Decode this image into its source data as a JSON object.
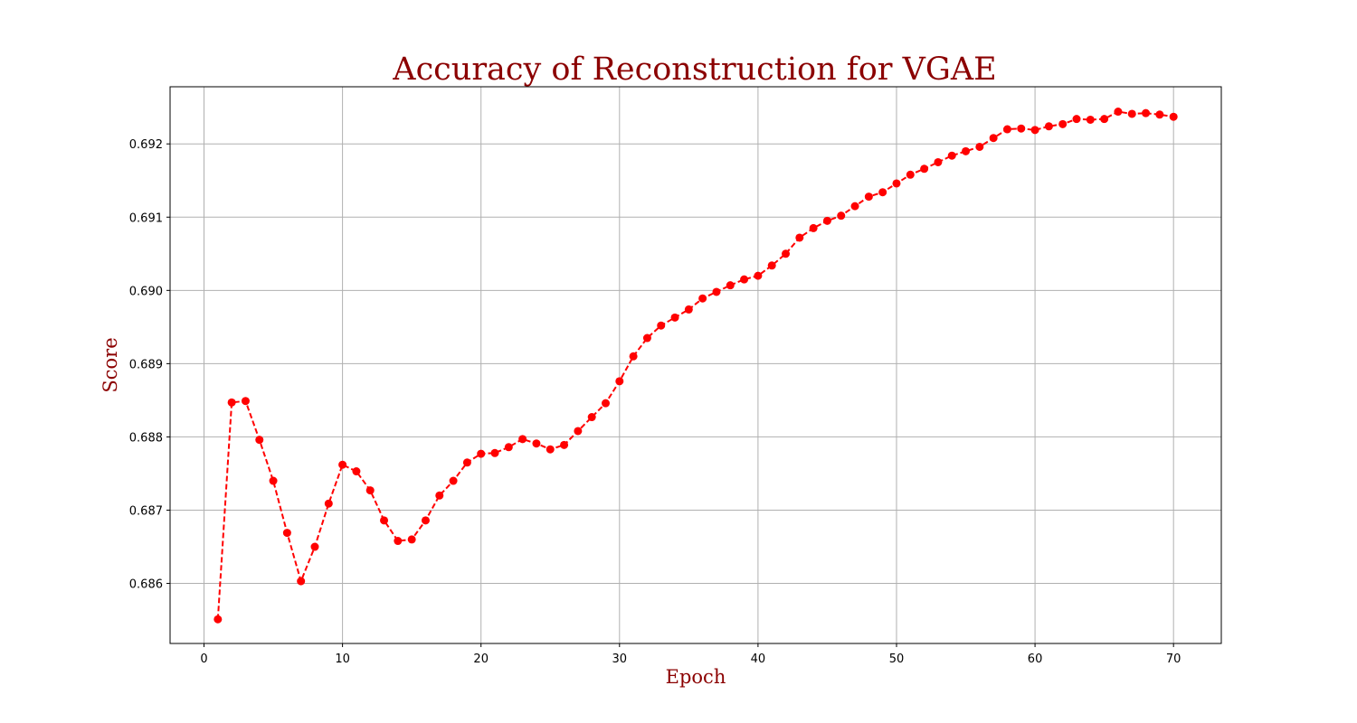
{
  "colors": {
    "title": "#8b0000",
    "axis_label": "#8b0000",
    "series": "#ff0000",
    "grid": "#b0b0b0"
  },
  "chart_data": {
    "type": "line",
    "title": "Accuracy of Reconstruction for VGAE",
    "xlabel": "Epoch",
    "ylabel": "Score",
    "xlim": [
      -2.45,
      73.45
    ],
    "ylim": [
      0.68518,
      0.69278
    ],
    "xticks": [
      0,
      10,
      20,
      30,
      40,
      50,
      60,
      70
    ],
    "xtick_labels": [
      "0",
      "10",
      "20",
      "30",
      "40",
      "50",
      "60",
      "70"
    ],
    "yticks": [
      0.686,
      0.687,
      0.688,
      0.689,
      0.69,
      0.691,
      0.692
    ],
    "ytick_labels": [
      "0.686",
      "0.687",
      "0.688",
      "0.689",
      "0.690",
      "0.691",
      "0.692"
    ],
    "grid": true,
    "line_style": "dashed",
    "marker": "circle",
    "x": [
      1,
      2,
      3,
      4,
      5,
      6,
      7,
      8,
      9,
      10,
      11,
      12,
      13,
      14,
      15,
      16,
      17,
      18,
      19,
      20,
      21,
      22,
      23,
      24,
      25,
      26,
      27,
      28,
      29,
      30,
      31,
      32,
      33,
      34,
      35,
      36,
      37,
      38,
      39,
      40,
      41,
      42,
      43,
      44,
      45,
      46,
      47,
      48,
      49,
      50,
      51,
      52,
      53,
      54,
      55,
      56,
      57,
      58,
      59,
      60,
      61,
      62,
      63,
      64,
      65,
      66,
      67,
      68,
      69,
      70
    ],
    "y": [
      0.68551,
      0.68847,
      0.68849,
      0.68796,
      0.6874,
      0.68669,
      0.68603,
      0.6865,
      0.68709,
      0.68762,
      0.68753,
      0.68727,
      0.68686,
      0.68658,
      0.6866,
      0.68686,
      0.6872,
      0.6874,
      0.68765,
      0.68777,
      0.68778,
      0.68786,
      0.68797,
      0.68791,
      0.68783,
      0.68789,
      0.68808,
      0.68827,
      0.68846,
      0.68876,
      0.6891,
      0.68935,
      0.68952,
      0.68963,
      0.68974,
      0.68989,
      0.68998,
      0.69007,
      0.69015,
      0.6902,
      0.69034,
      0.6905,
      0.69072,
      0.69085,
      0.69095,
      0.69102,
      0.69115,
      0.69128,
      0.69134,
      0.69146,
      0.69158,
      0.69166,
      0.69175,
      0.69184,
      0.6919,
      0.69196,
      0.69208,
      0.6922,
      0.69221,
      0.69219,
      0.69224,
      0.69227,
      0.69234,
      0.69233,
      0.69234,
      0.69244,
      0.69241,
      0.69242,
      0.6924,
      0.69237
    ]
  }
}
